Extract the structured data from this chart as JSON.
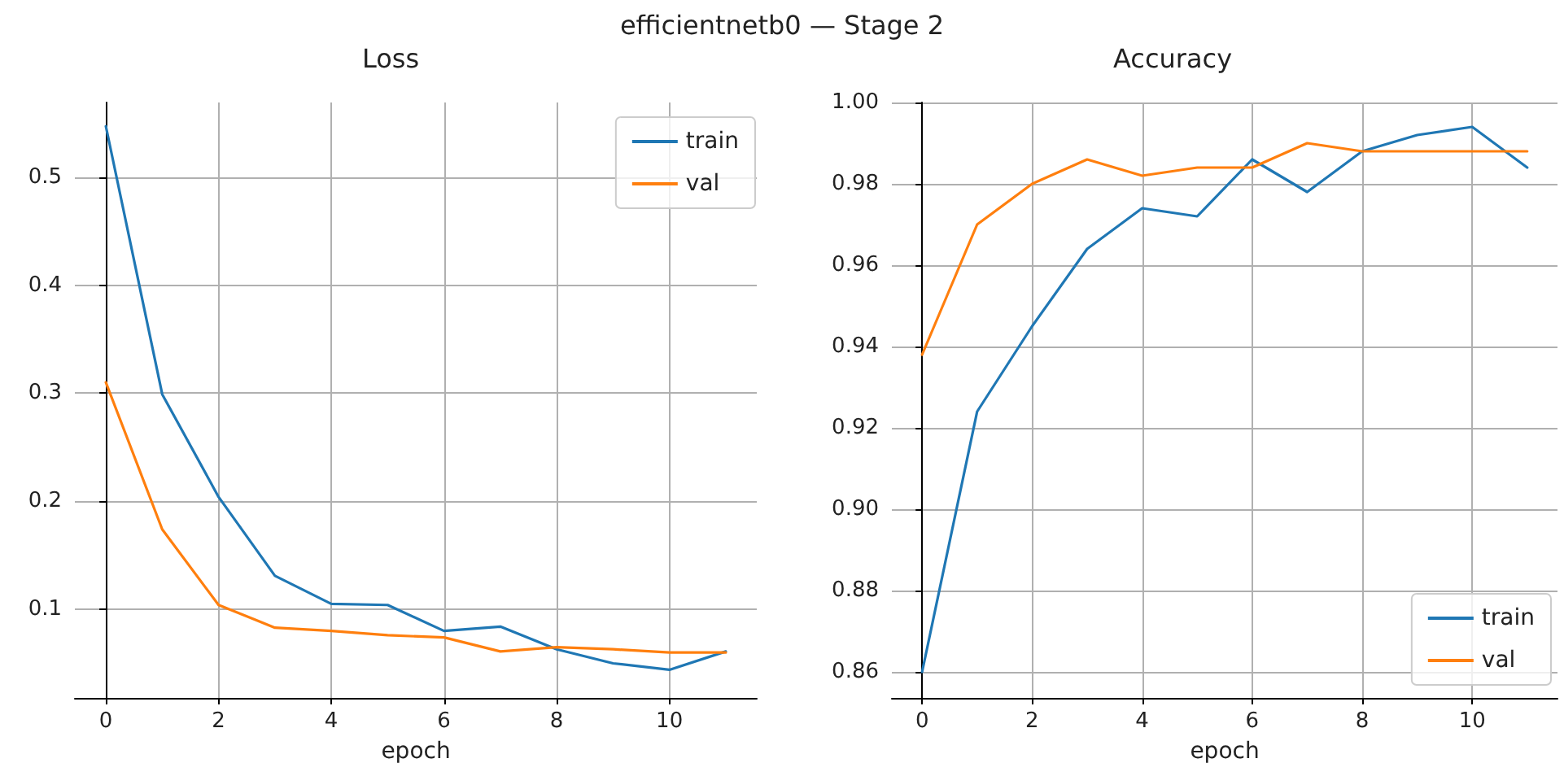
{
  "chart_data": [
    {
      "type": "line",
      "title": "Loss",
      "xlabel": "epoch",
      "annotations": [
        "efficientnetb0 — Stage 2"
      ],
      "x": [
        0,
        1,
        2,
        3,
        4,
        5,
        6,
        7,
        8,
        9,
        10,
        11
      ],
      "series": [
        {
          "name": "train",
          "color": "#1f77b4",
          "values": [
            0.547,
            0.299,
            0.204,
            0.131,
            0.105,
            0.104,
            0.08,
            0.084,
            0.063,
            0.05,
            0.044,
            0.061
          ]
        },
        {
          "name": "val",
          "color": "#ff7f0e",
          "values": [
            0.31,
            0.174,
            0.104,
            0.083,
            0.08,
            0.076,
            0.074,
            0.061,
            0.065,
            0.063,
            0.06,
            0.06
          ]
        }
      ],
      "xlim": [
        -0.55,
        11.55
      ],
      "xticks": [
        0,
        2,
        4,
        6,
        8,
        10
      ],
      "ylim": [
        0.018,
        0.569
      ],
      "yticks": [
        0.1,
        0.2,
        0.3,
        0.4,
        0.5
      ],
      "grid": true,
      "legend": "top right",
      "marker": "none",
      "line_style": "solid"
    },
    {
      "type": "line",
      "title": "Accuracy",
      "xlabel": "epoch",
      "x": [
        0,
        1,
        2,
        3,
        4,
        5,
        6,
        7,
        8,
        9,
        10,
        11
      ],
      "series": [
        {
          "name": "train",
          "color": "#1f77b4",
          "values": [
            0.86,
            0.924,
            0.945,
            0.964,
            0.974,
            0.972,
            0.986,
            0.978,
            0.988,
            0.992,
            0.994,
            0.984
          ]
        },
        {
          "name": "val",
          "color": "#ff7f0e",
          "values": [
            0.938,
            0.97,
            0.98,
            0.986,
            0.982,
            0.984,
            0.984,
            0.99,
            0.988,
            0.988,
            0.988,
            0.988
          ]
        }
      ],
      "xlim": [
        -0.55,
        11.55
      ],
      "xticks": [
        0,
        2,
        4,
        6,
        8,
        10
      ],
      "ylim": [
        0.8536,
        1.0
      ],
      "yticks": [
        {
          "value": 0.86,
          "label": "0.86"
        },
        {
          "value": 0.88,
          "label": "0.88"
        },
        {
          "value": 0.9,
          "label": "0.90"
        },
        {
          "value": 0.92,
          "label": "0.92"
        },
        {
          "value": 0.94,
          "label": "0.94"
        },
        {
          "value": 0.96,
          "label": "0.96"
        },
        {
          "value": 0.98,
          "label": "0.98"
        },
        {
          "value": 1.0,
          "label": "1.00"
        }
      ],
      "grid": true,
      "legend": "bottom right",
      "marker": "none",
      "line_style": "solid"
    }
  ]
}
